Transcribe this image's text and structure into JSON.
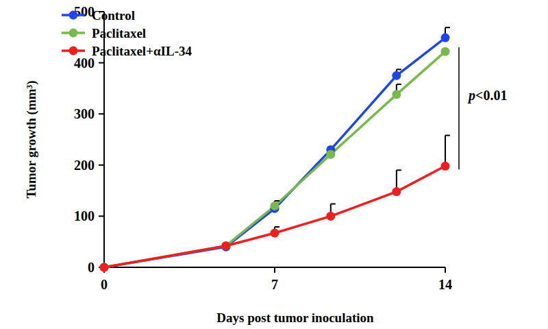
{
  "chart_data": {
    "type": "line",
    "x_label": "Days post tumor inoculation",
    "y_label": "Tumor growth (mm³)",
    "x": [
      0,
      5,
      7,
      9.3,
      12,
      14
    ],
    "series": [
      {
        "name": "Control",
        "color": "#1f47e6",
        "values": [
          0,
          40,
          115,
          230,
          375,
          449
        ],
        "errors": [
          null,
          null,
          null,
          null,
          12,
          20
        ]
      },
      {
        "name": "Paclitaxel",
        "color": "#78b94b",
        "values": [
          0,
          42,
          120,
          221,
          338,
          422
        ],
        "errors": [
          null,
          null,
          10,
          null,
          20,
          null
        ]
      },
      {
        "name": "Paclitaxel+αIL-34",
        "color": "#f01e1e",
        "values": [
          0,
          42,
          67,
          100,
          148,
          198
        ],
        "errors": [
          null,
          null,
          12,
          24,
          42,
          60
        ]
      }
    ],
    "xlim": [
      0,
      14
    ],
    "xticks": [
      0,
      7,
      14
    ],
    "ylim": [
      0,
      500
    ],
    "yticks": [
      0,
      100,
      200,
      300,
      400,
      500
    ],
    "grid": false,
    "legend": "upper left",
    "marker": "circle",
    "line_style": "solid",
    "annotations": [
      {
        "text": "p<0.01"
      }
    ]
  }
}
